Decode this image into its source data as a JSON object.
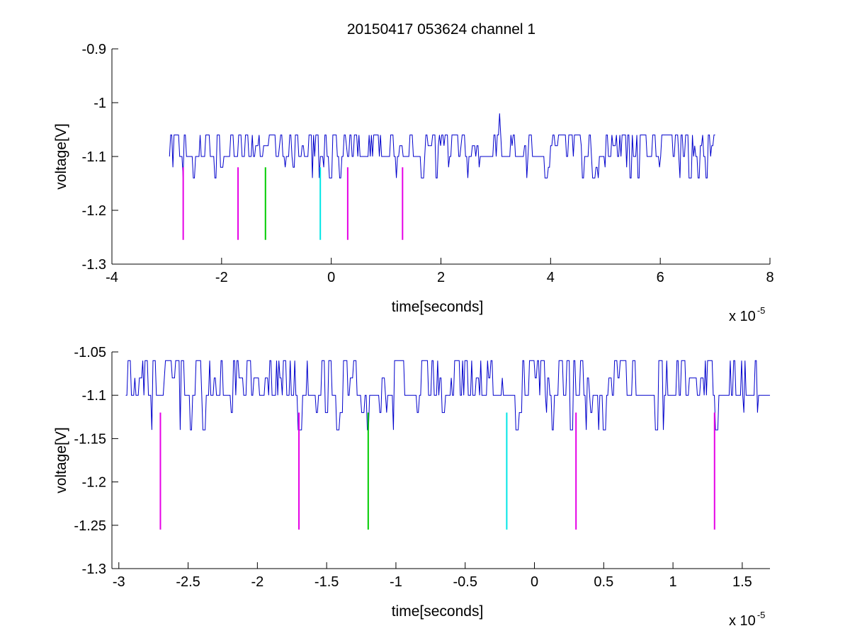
{
  "title": "20150417 053624 channel 1",
  "chart_data": [
    {
      "type": "line",
      "title": "20150417 053624 channel 1",
      "xlabel": "time[seconds]",
      "ylabel": "voltage[V]",
      "x_multiplier": "x 10",
      "x_exponent": "-5",
      "xlim": [
        -4,
        8
      ],
      "ylim": [
        -1.3,
        -0.9
      ],
      "xticks": [
        -4,
        -2,
        0,
        2,
        4,
        6,
        8
      ],
      "xtick_labels": [
        "-4",
        "-2",
        "0",
        "2",
        "4",
        "6",
        "8"
      ],
      "yticks": [
        -1.3,
        -1.2,
        -1.1,
        -1,
        -0.9
      ],
      "ytick_labels": [
        "-1.3",
        "-1.2",
        "-1.1",
        "-1",
        "-0.9"
      ],
      "grid": false,
      "signal": {
        "color": "#0000cc",
        "x_range": [
          -2.95,
          7.0
        ],
        "levels": [
          -1.14,
          -1.12,
          -1.1,
          -1.08,
          -1.06
        ],
        "baseline": -1.1,
        "spike": {
          "x": 3.07,
          "y": -1.02
        }
      },
      "markers": [
        {
          "x": -2.7,
          "y_top": -1.12,
          "y_bottom": -1.255,
          "color": "#e600e6"
        },
        {
          "x": -1.7,
          "y_top": -1.12,
          "y_bottom": -1.255,
          "color": "#e600e6"
        },
        {
          "x": -1.2,
          "y_top": -1.12,
          "y_bottom": -1.255,
          "color": "#00cc00"
        },
        {
          "x": -0.2,
          "y_top": -1.12,
          "y_bottom": -1.255,
          "color": "#00e6e6"
        },
        {
          "x": 0.3,
          "y_top": -1.12,
          "y_bottom": -1.255,
          "color": "#e600e6"
        },
        {
          "x": 1.3,
          "y_top": -1.12,
          "y_bottom": -1.255,
          "color": "#e600e6"
        }
      ]
    },
    {
      "type": "line",
      "title": "",
      "xlabel": "time[seconds]",
      "ylabel": "voltage[V]",
      "x_multiplier": "x 10",
      "x_exponent": "-5",
      "xlim": [
        -3.05,
        1.7
      ],
      "ylim": [
        -1.3,
        -1.05
      ],
      "xticks": [
        -3,
        -2.5,
        -2,
        -1.5,
        -1,
        -0.5,
        0,
        0.5,
        1,
        1.5
      ],
      "xtick_labels": [
        "-3",
        "-2.5",
        "-2",
        "-1.5",
        "-1",
        "-0.5",
        "0",
        "0.5",
        "1",
        "1.5"
      ],
      "yticks": [
        -1.3,
        -1.25,
        -1.2,
        -1.15,
        -1.1,
        -1.05
      ],
      "ytick_labels": [
        "-1.3",
        "-1.25",
        "-1.2",
        "-1.15",
        "-1.1",
        "-1.05"
      ],
      "grid": false,
      "signal": {
        "color": "#0000cc",
        "x_range": [
          -2.95,
          1.7
        ],
        "levels": [
          -1.14,
          -1.12,
          -1.1,
          -1.08,
          -1.06
        ],
        "baseline": -1.1
      },
      "markers": [
        {
          "x": -2.7,
          "y_top": -1.12,
          "y_bottom": -1.255,
          "color": "#e600e6"
        },
        {
          "x": -1.7,
          "y_top": -1.12,
          "y_bottom": -1.255,
          "color": "#e600e6"
        },
        {
          "x": -1.2,
          "y_top": -1.12,
          "y_bottom": -1.255,
          "color": "#00cc00"
        },
        {
          "x": -0.2,
          "y_top": -1.12,
          "y_bottom": -1.255,
          "color": "#00e6e6"
        },
        {
          "x": 0.3,
          "y_top": -1.12,
          "y_bottom": -1.255,
          "color": "#e600e6"
        },
        {
          "x": 1.3,
          "y_top": -1.12,
          "y_bottom": -1.255,
          "color": "#e600e6"
        }
      ]
    }
  ]
}
